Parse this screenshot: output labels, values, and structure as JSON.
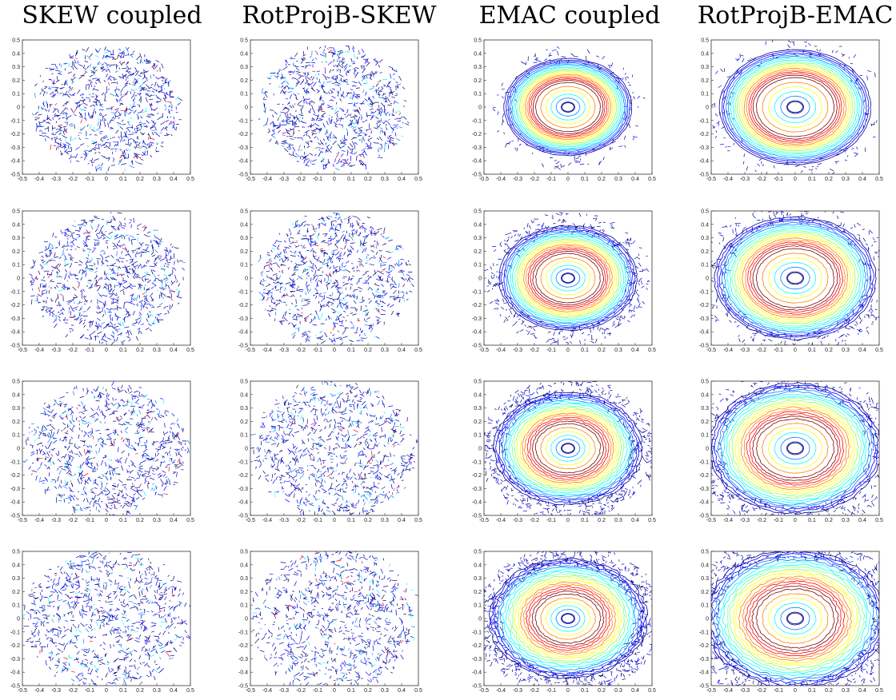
{
  "column_titles": [
    "SKEW coupled",
    "RotProjB-SKEW",
    "EMAC coupled",
    "RotProjB-EMAC"
  ],
  "chart_data": {
    "type": "contour",
    "grid": "4x4 small multiples",
    "xlim": [
      -0.5,
      0.5
    ],
    "ylim": [
      -0.5,
      0.5
    ],
    "x_ticks": [
      "-0.5",
      "-0.4",
      "-0.3",
      "-0.2",
      "-0.1",
      "0",
      "0.1",
      "0.2",
      "0.3",
      "0.4",
      "0.5"
    ],
    "y_ticks": [
      "0.5",
      "0.4",
      "0.3",
      "0.2",
      "0.1",
      "0",
      "-0.1",
      "-0.2",
      "-0.3",
      "-0.4",
      "-0.5"
    ],
    "colormap": [
      "#00008f",
      "#0000ff",
      "#0080ff",
      "#00ffff",
      "#80ff80",
      "#ffff00",
      "#ff8000",
      "#ff0000",
      "#800000"
    ],
    "columns": [
      {
        "title": "SKEW coupled",
        "pattern": "noisy disk",
        "disk_radius": 0.43,
        "dominant_level": "blue",
        "ring": false
      },
      {
        "title": "RotProjB-SKEW",
        "pattern": "noisy disk",
        "disk_radius": 0.44,
        "dominant_level": "blue",
        "ring": false
      },
      {
        "title": "EMAC coupled",
        "pattern": "annulus",
        "ring_radius": 0.2,
        "hole_radius": 0.04,
        "outer_radius": 0.38,
        "ring": true
      },
      {
        "title": "RotProjB-EMAC",
        "pattern": "annulus",
        "ring_radius": 0.24,
        "hole_radius": 0.05,
        "outer_radius": 0.45,
        "ring": true
      }
    ],
    "rows": 4
  }
}
